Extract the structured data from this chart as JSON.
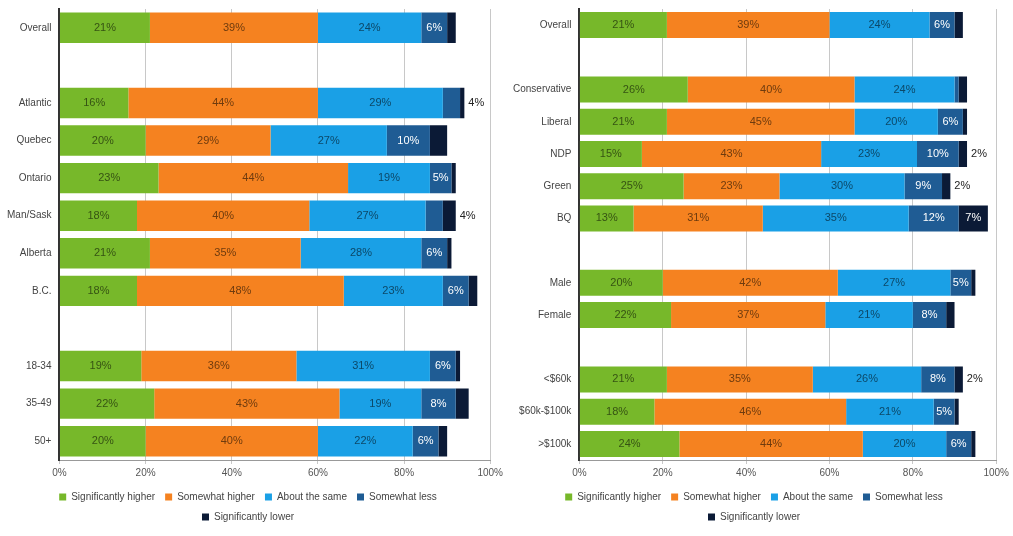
{
  "chart_data": [
    {
      "type": "bar",
      "orientation": "horizontal",
      "stacked": true,
      "grid": "x",
      "legend": "bottom",
      "categories": [
        "Overall",
        null,
        "Atlantic",
        "Quebec",
        "Ontario",
        "Man/Sask",
        "Alberta",
        "B.C.",
        null,
        "18-34",
        "35-49",
        "50+"
      ],
      "xlim": [
        0,
        100
      ],
      "xticks": [
        {
          "value": 0,
          "label": "0%"
        },
        {
          "value": 20,
          "label": "20%"
        },
        {
          "value": 40,
          "label": "40%"
        },
        {
          "value": 60,
          "label": "60%"
        },
        {
          "value": 80,
          "label": "80%"
        },
        {
          "value": 100,
          "label": "100%"
        }
      ],
      "series": [
        {
          "name": "Significantly higher",
          "color": "#77b82a",
          "values": [
            21,
            null,
            16,
            20,
            23,
            18,
            21,
            18,
            null,
            19,
            22,
            20
          ],
          "value_labels": [
            "21%",
            null,
            "16%",
            "20%",
            "23%",
            "18%",
            "21%",
            "18%",
            null,
            "19%",
            "22%",
            "20%"
          ]
        },
        {
          "name": "Somewhat higher",
          "color": "#f58220",
          "values": [
            39,
            null,
            44,
            29,
            44,
            40,
            35,
            48,
            null,
            36,
            43,
            40
          ],
          "value_labels": [
            "39%",
            null,
            "44%",
            "29%",
            "44%",
            "40%",
            "35%",
            "48%",
            null,
            "36%",
            "43%",
            "40%"
          ]
        },
        {
          "name": "About the same",
          "color": "#1aa0e6",
          "values": [
            24,
            null,
            29,
            27,
            19,
            27,
            28,
            23,
            null,
            31,
            19,
            22
          ],
          "value_labels": [
            "24%",
            null,
            "29%",
            "27%",
            "19%",
            "27%",
            "28%",
            "23%",
            null,
            "31%",
            "19%",
            "22%"
          ]
        },
        {
          "name": "Somewhat less",
          "color": "#1f5c94",
          "values": [
            6,
            null,
            4,
            10,
            5,
            4,
            6,
            6,
            null,
            6,
            8,
            6
          ],
          "value_labels": [
            "6%",
            null,
            "4%",
            "10%",
            "5%",
            "4%",
            "6%",
            "6%",
            null,
            "6%",
            "8%",
            "6%"
          ]
        },
        {
          "name": "Significantly lower",
          "color": "#0b1a36",
          "values": [
            2,
            null,
            1,
            4,
            1,
            3,
            1,
            2,
            null,
            1,
            3,
            2
          ],
          "value_labels": [
            null,
            null,
            null,
            null,
            null,
            null,
            null,
            null,
            null,
            null,
            null,
            null
          ]
        }
      ]
    },
    {
      "type": "bar",
      "orientation": "horizontal",
      "stacked": true,
      "grid": "x",
      "legend": "bottom",
      "categories": [
        "Overall",
        null,
        "Conservative",
        "Liberal",
        "NDP",
        "Green",
        "BQ",
        null,
        "Male",
        "Female",
        null,
        "<$60k",
        "$60k-$100k",
        ">$100k"
      ],
      "xlim": [
        0,
        100
      ],
      "xticks": [
        {
          "value": 0,
          "label": "0%"
        },
        {
          "value": 20,
          "label": "20%"
        },
        {
          "value": 40,
          "label": "40%"
        },
        {
          "value": 60,
          "label": "60%"
        },
        {
          "value": 80,
          "label": "80%"
        },
        {
          "value": 100,
          "label": "100%"
        }
      ],
      "series": [
        {
          "name": "Significantly higher",
          "color": "#77b82a",
          "values": [
            21,
            null,
            26,
            21,
            15,
            25,
            13,
            null,
            20,
            22,
            null,
            21,
            18,
            24
          ],
          "value_labels": [
            "21%",
            null,
            "26%",
            "21%",
            "15%",
            "25%",
            "13%",
            null,
            "20%",
            "22%",
            null,
            "21%",
            "18%",
            "24%"
          ]
        },
        {
          "name": "Somewhat higher",
          "color": "#f58220",
          "values": [
            39,
            null,
            40,
            45,
            43,
            23,
            31,
            null,
            42,
            37,
            null,
            35,
            46,
            44
          ],
          "value_labels": [
            "39%",
            null,
            "40%",
            "45%",
            "43%",
            "23%",
            "31%",
            null,
            "42%",
            "37%",
            null,
            "35%",
            "46%",
            "44%"
          ]
        },
        {
          "name": "About the same",
          "color": "#1aa0e6",
          "values": [
            24,
            null,
            24,
            20,
            23,
            30,
            35,
            null,
            27,
            21,
            null,
            26,
            21,
            20
          ],
          "value_labels": [
            "24%",
            null,
            "24%",
            "20%",
            "23%",
            "30%",
            "35%",
            null,
            "27%",
            "21%",
            null,
            "26%",
            "21%",
            "20%"
          ]
        },
        {
          "name": "Somewhat less",
          "color": "#1f5c94",
          "values": [
            6,
            null,
            1,
            6,
            10,
            9,
            12,
            null,
            5,
            8,
            null,
            8,
            5,
            6
          ],
          "value_labels": [
            "6%",
            null,
            null,
            "6%",
            "10%",
            "9%",
            "12%",
            null,
            "5%",
            "8%",
            null,
            "8%",
            "5%",
            "6%"
          ]
        },
        {
          "name": "Significantly lower",
          "color": "#0b1a36",
          "values": [
            2,
            null,
            2,
            1,
            2,
            2,
            7,
            null,
            1,
            2,
            null,
            2,
            1,
            1
          ],
          "value_labels": [
            null,
            null,
            null,
            null,
            "2%",
            "2%",
            "7%",
            null,
            null,
            null,
            null,
            "2%",
            null,
            null
          ]
        }
      ]
    }
  ]
}
